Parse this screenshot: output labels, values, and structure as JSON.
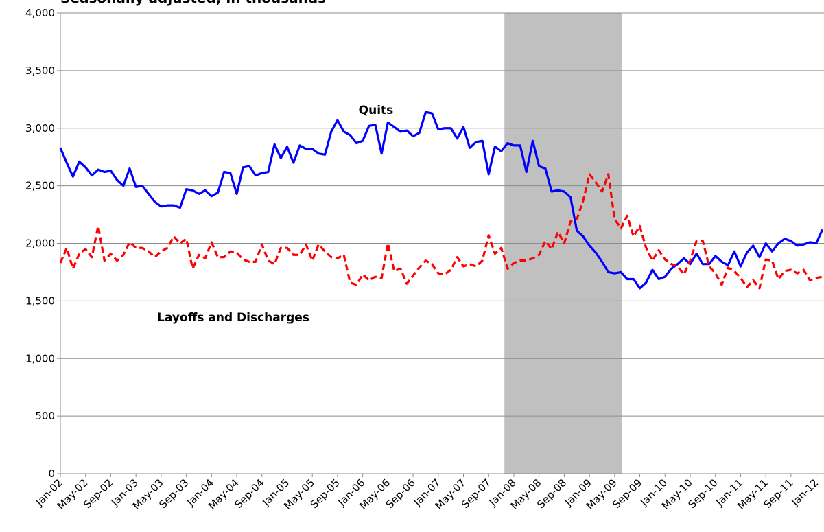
{
  "chart_data": {
    "type": "line",
    "subtitle": "Seasonally adjusted, in thousands",
    "categories": [
      "Jan-02",
      null,
      null,
      null,
      "May-02",
      null,
      null,
      null,
      "Sep-02",
      null,
      null,
      null,
      "Jan-03",
      null,
      null,
      null,
      "May-03",
      null,
      null,
      null,
      "Sep-03",
      null,
      null,
      null,
      "Jan-04",
      null,
      null,
      null,
      "May-04",
      null,
      null,
      null,
      "Sep-04",
      null,
      null,
      null,
      "Jan-05",
      null,
      null,
      null,
      "May-05",
      null,
      null,
      null,
      "Sep-05",
      null,
      null,
      null,
      "Jan-06",
      null,
      null,
      null,
      "May-06",
      null,
      null,
      null,
      "Sep-06",
      null,
      null,
      null,
      "Jan-07",
      null,
      null,
      null,
      "May-07",
      null,
      null,
      null,
      "Sep-07",
      null,
      null,
      null,
      "Jan-08",
      null,
      null,
      null,
      "May-08",
      null,
      null,
      null,
      "Sep-08",
      null,
      null,
      null,
      "Jan-09",
      null,
      null,
      null,
      "May-09",
      null,
      null,
      null,
      "Sep-09",
      null,
      null,
      null,
      "Jan-10",
      null,
      null,
      null,
      "May-10",
      null,
      null,
      null,
      "Sep-10",
      null,
      null,
      null,
      "Jan-11",
      null,
      null,
      null,
      "May-11",
      null,
      null,
      null,
      "Sep-11",
      null,
      null,
      null,
      "Jan-12",
      null
    ],
    "series": [
      {
        "name": "Quits",
        "color": "#0000ff",
        "dashed": false,
        "values": [
          2830,
          2700,
          2580,
          2710,
          2660,
          2590,
          2640,
          2620,
          2630,
          2550,
          2500,
          2650,
          2490,
          2500,
          2430,
          2360,
          2320,
          2330,
          2330,
          2310,
          2470,
          2460,
          2430,
          2460,
          2410,
          2440,
          2620,
          2610,
          2430,
          2660,
          2670,
          2590,
          2610,
          2620,
          2860,
          2740,
          2840,
          2700,
          2850,
          2820,
          2820,
          2780,
          2770,
          2970,
          3070,
          2970,
          2940,
          2870,
          2890,
          3020,
          3030,
          2780,
          3050,
          3010,
          2970,
          2980,
          2930,
          2960,
          3140,
          3130,
          2990,
          3000,
          3000,
          2910,
          3010,
          2830,
          2880,
          2890,
          2600,
          2840,
          2800,
          2870,
          2850,
          2850,
          2620,
          2890,
          2670,
          2650,
          2450,
          2460,
          2450,
          2400,
          2110,
          2060,
          1980,
          1920,
          1840,
          1750,
          1740,
          1750,
          1690,
          1690,
          1610,
          1660,
          1770,
          1690,
          1710,
          1780,
          1820,
          1870,
          1820,
          1910,
          1820,
          1820,
          1890,
          1840,
          1810,
          1930,
          1800,
          1920,
          1980,
          1880,
          2000,
          1930,
          2000,
          2040,
          2020,
          1980,
          1990,
          2010,
          2000,
          2120
        ]
      },
      {
        "name": "Layoffs and Discharges",
        "color": "#ff0000",
        "dashed": true,
        "values": [
          1830,
          1960,
          1780,
          1910,
          1950,
          1880,
          2150,
          1850,
          1910,
          1850,
          1900,
          2010,
          1960,
          1960,
          1930,
          1880,
          1930,
          1960,
          2060,
          2000,
          2040,
          1780,
          1900,
          1870,
          2010,
          1880,
          1880,
          1930,
          1920,
          1860,
          1840,
          1840,
          1990,
          1850,
          1820,
          1960,
          1960,
          1900,
          1900,
          1990,
          1850,
          1990,
          1930,
          1880,
          1870,
          1900,
          1660,
          1640,
          1730,
          1680,
          1710,
          1700,
          2000,
          1760,
          1780,
          1650,
          1720,
          1790,
          1850,
          1820,
          1740,
          1730,
          1770,
          1880,
          1800,
          1820,
          1800,
          1850,
          2070,
          1910,
          1960,
          1780,
          1830,
          1850,
          1850,
          1870,
          1900,
          2020,
          1950,
          2100,
          2000,
          2190,
          2210,
          2370,
          2600,
          2530,
          2450,
          2600,
          2210,
          2130,
          2240,
          2060,
          2150,
          1960,
          1850,
          1940,
          1860,
          1820,
          1800,
          1730,
          1850,
          2020,
          2020,
          1800,
          1740,
          1640,
          1790,
          1760,
          1700,
          1620,
          1680,
          1610,
          1860,
          1850,
          1690,
          1760,
          1770,
          1740,
          1770,
          1680,
          1700,
          1710
        ]
      }
    ],
    "shade_range": [
      70.5,
      89.2
    ],
    "ylim": [
      0,
      4000
    ],
    "yticks": [
      0,
      500,
      {
        "value": 1000,
        "label": "1,000"
      },
      {
        "value": 1500,
        "label": "1,500"
      },
      {
        "value": 2000,
        "label": "2,000"
      },
      {
        "value": 2500,
        "label": "2,500"
      },
      {
        "value": 3000,
        "label": "3,000"
      },
      {
        "value": 3500,
        "label": "3,500"
      },
      {
        "value": 4000,
        "label": "4,000"
      }
    ],
    "grid": true
  }
}
